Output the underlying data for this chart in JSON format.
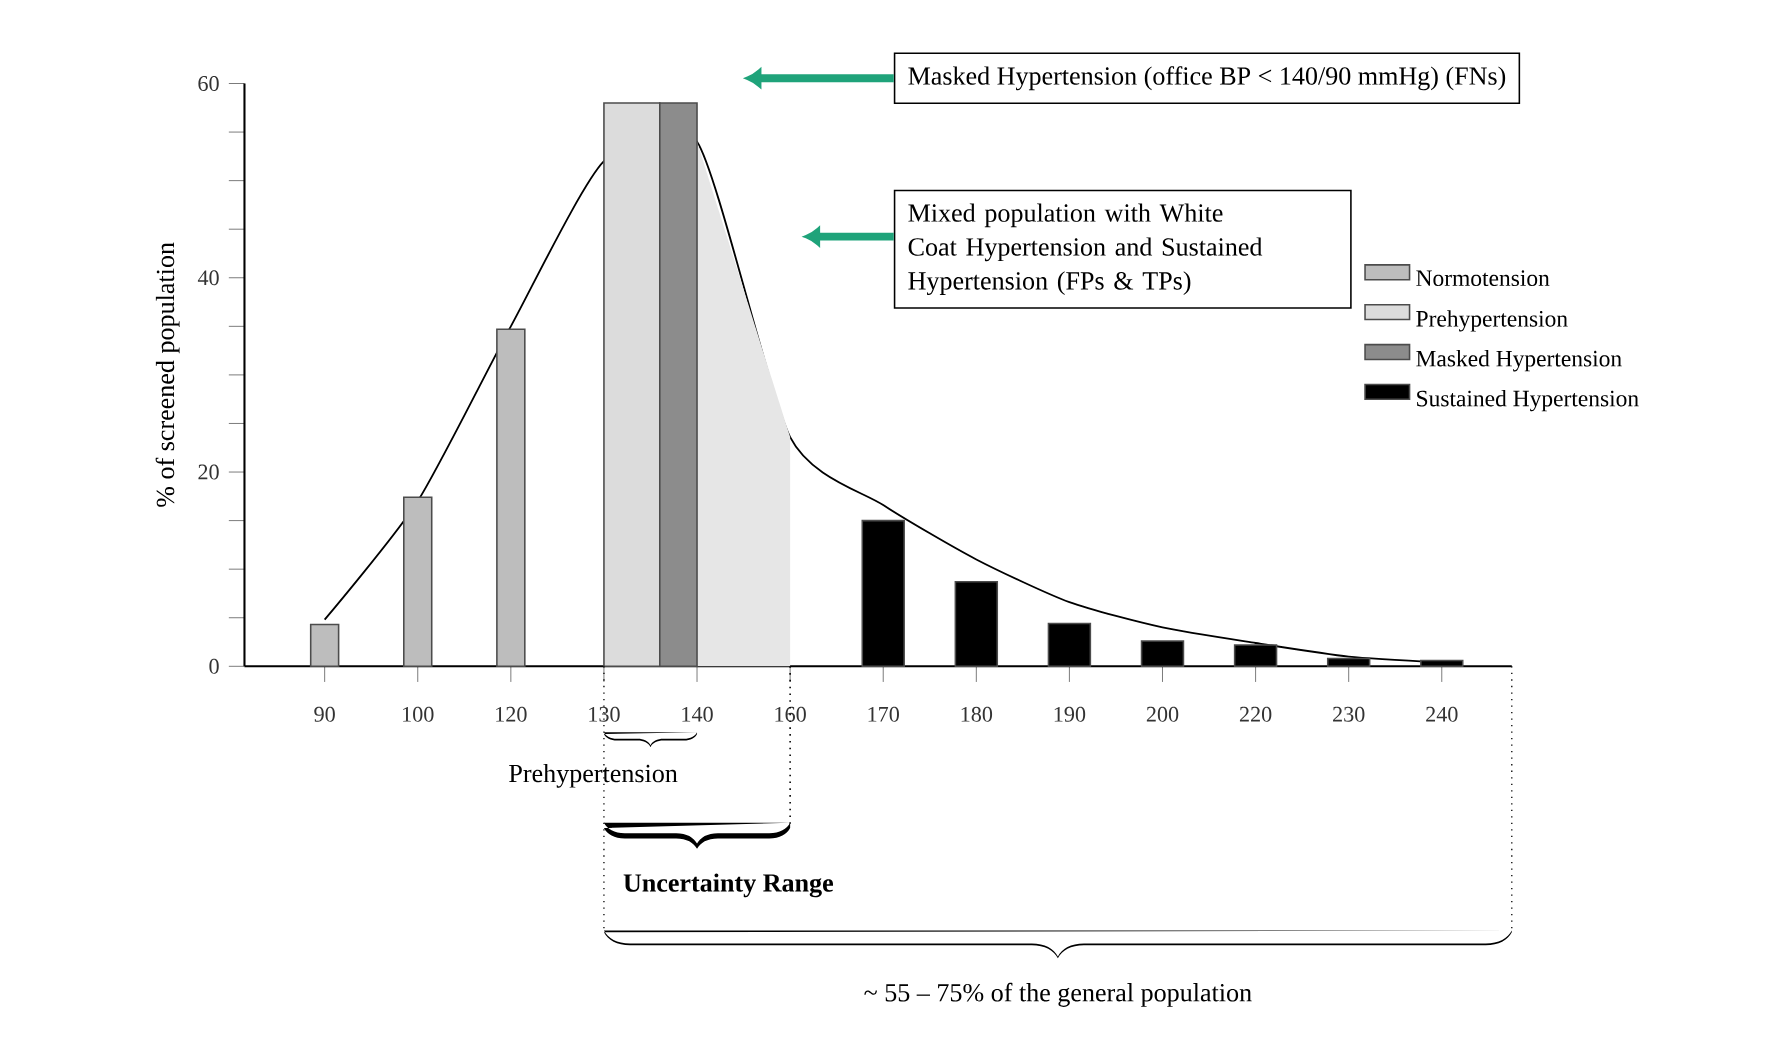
{
  "chart_data": {
    "type": "bar",
    "ylabel": "% of screened population",
    "categories": [
      "90",
      "100",
      "120",
      "130",
      "140",
      "160",
      "170",
      "180",
      "190",
      "200",
      "220",
      "230",
      "240"
    ],
    "series": [
      {
        "type": "line",
        "color": "#000000",
        "values": [
          4.8,
          17,
          35,
          52,
          54,
          23.6,
          16.6,
          11,
          6.6,
          4,
          2.4,
          1,
          0.4
        ]
      },
      {
        "type": "area",
        "color": "#e6e6e6",
        "values": [
          null,
          null,
          null,
          null,
          54,
          23.6,
          null,
          null,
          null,
          null,
          null,
          null,
          null
        ]
      },
      {
        "name": "Normotension",
        "color": "#bdbdbd",
        "values": [
          4.3,
          17.4,
          34.7,
          null,
          null,
          null,
          null,
          null,
          null,
          null,
          null,
          null,
          null
        ]
      },
      {
        "name": "Prehypertension",
        "color": "#dcdcdc",
        "values": [
          null,
          null,
          null,
          58,
          null,
          null,
          null,
          null,
          null,
          null,
          null,
          null,
          null
        ]
      },
      {
        "name": "Masked Hypertension",
        "color": "#8c8c8c",
        "values": [
          null,
          null,
          null,
          null,
          58,
          null,
          null,
          null,
          null,
          null,
          null,
          null,
          null
        ]
      },
      {
        "name": "Sustained Hypertension",
        "color": "#000000",
        "values": [
          null,
          null,
          null,
          null,
          null,
          null,
          15,
          8.7,
          4.4,
          2.6,
          2.2,
          0.8,
          0.6
        ]
      }
    ],
    "ylim": [
      0,
      60
    ],
    "yticks": [
      0,
      20,
      40,
      60
    ],
    "legend": "right",
    "annotations": [
      "Masked Hypertension (office BP < 140/90 mmHg) (FNs)",
      "Mixed population with White Coat Hypertension and Sustained Hypertension (FPs & TPs)",
      "Prehypertension",
      "Uncertainty Range",
      "~ 55 – 75% of the general population"
    ]
  }
}
